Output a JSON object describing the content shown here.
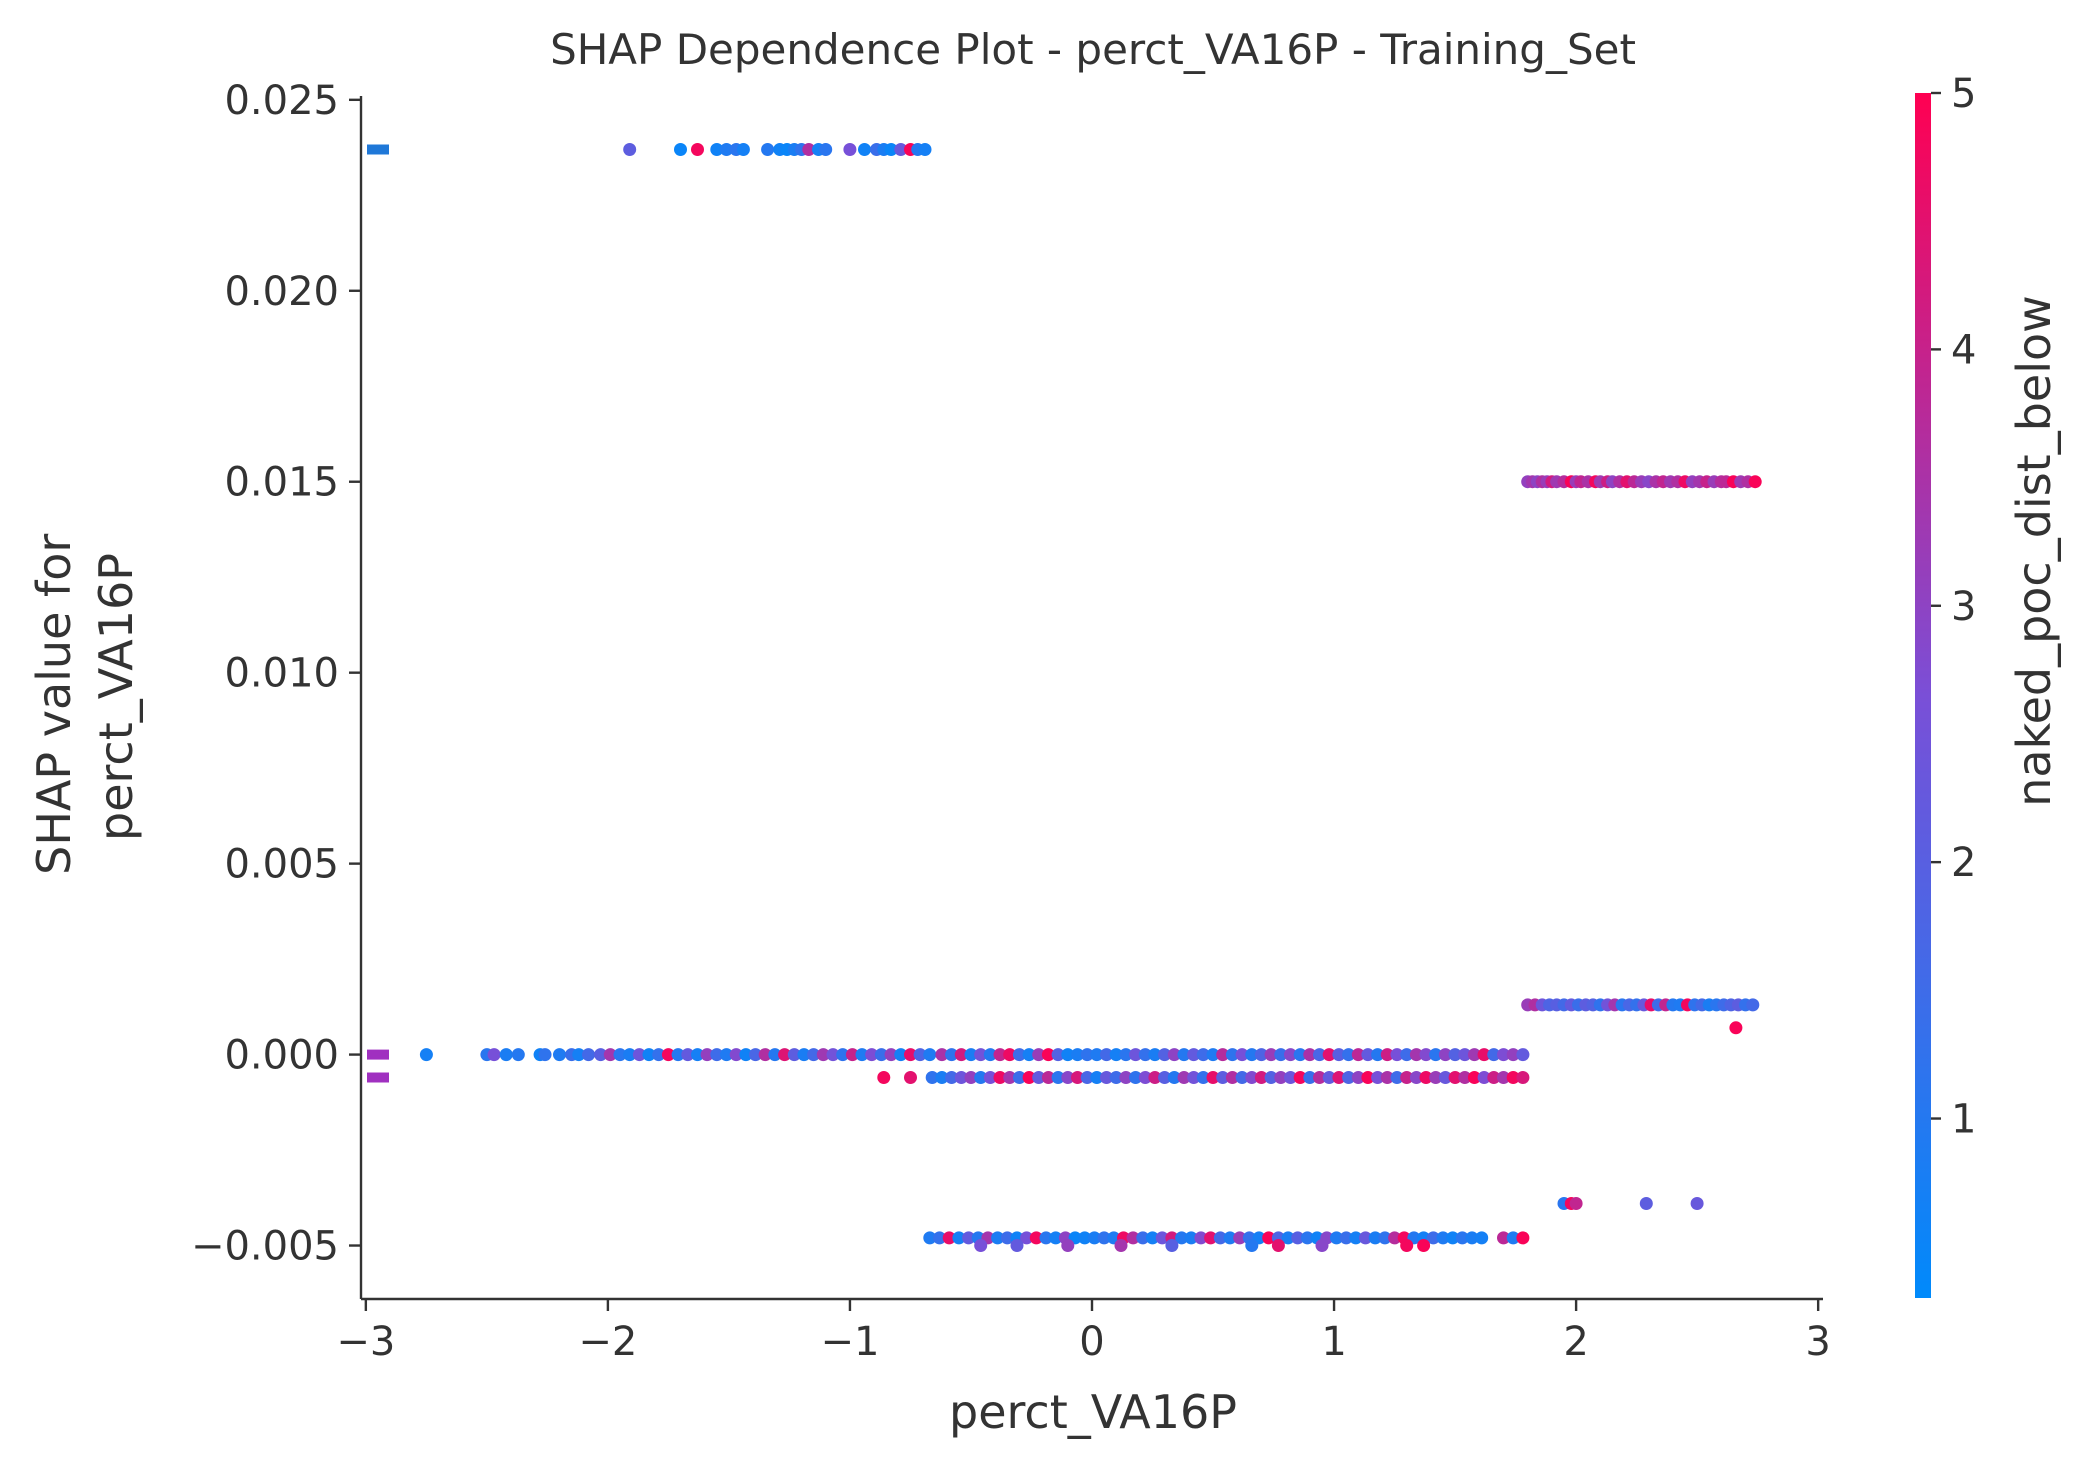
{
  "chart_data": {
    "type": "scatter",
    "title": "SHAP Dependence Plot - perct_VA16P - Training_Set",
    "xlabel": "perct_VA16P",
    "ylabel_lines": [
      "SHAP value for",
      "perct_VA16P"
    ],
    "xlim": [
      -3.02,
      3.02
    ],
    "ylim": [
      -0.0064,
      0.0251
    ],
    "xticks": [
      -3,
      -2,
      -1,
      0,
      1,
      2,
      3
    ],
    "xtick_labels": [
      "−3",
      "−2",
      "−1",
      "0",
      "1",
      "2",
      "3"
    ],
    "yticks": [
      -0.005,
      0.0,
      0.005,
      0.01,
      0.015,
      0.02,
      0.025
    ],
    "ytick_labels": [
      "−0.005",
      "0.000",
      "0.005",
      "0.010",
      "0.015",
      "0.020",
      "0.025"
    ],
    "colorbar": {
      "label": "naked_poc_dist_below",
      "range": [
        0.3,
        5.0
      ],
      "ticks": [
        1,
        2,
        3,
        4,
        5
      ],
      "tick_labels": [
        "1",
        "2",
        "3",
        "4",
        "5"
      ],
      "colors": [
        "#008afb",
        "#7a4fd7",
        "#ff0052"
      ]
    },
    "nan_markers": [
      {
        "y": 0.0237,
        "color": "#1f78d8"
      },
      {
        "y": 0.0,
        "color": "#a030c0"
      },
      {
        "y": -0.0006,
        "color": "#a030c0"
      }
    ],
    "groups": [
      {
        "y": 0.0237,
        "x": [
          -1.91,
          -1.7,
          -1.63,
          -1.55,
          -1.51,
          -1.47,
          -1.44,
          -1.34,
          -1.29,
          -1.26,
          -1.23,
          -1.2,
          -1.17,
          -1.13,
          -1.1,
          -1.0,
          -0.94,
          -0.89,
          -0.86,
          -0.83,
          -0.79,
          -0.75,
          -0.72,
          -0.69
        ],
        "c": [
          2.1,
          0.5,
          4.8,
          0.6,
          0.9,
          1.1,
          0.7,
          1.0,
          0.6,
          0.5,
          0.8,
          1.2,
          3.6,
          0.7,
          1.1,
          2.6,
          0.6,
          1.4,
          0.8,
          0.5,
          2.3,
          4.9,
          1.0,
          0.7
        ]
      },
      {
        "y": 0.015,
        "x": [
          1.8,
          1.82,
          1.84,
          1.86,
          1.88,
          1.9,
          1.92,
          1.95,
          1.98,
          2.0,
          2.02,
          2.05,
          2.08,
          2.1,
          2.13,
          2.15,
          2.18,
          2.21,
          2.24,
          2.27,
          2.3,
          2.33,
          2.36,
          2.39,
          2.42,
          2.45,
          2.48,
          2.51,
          2.54,
          2.57,
          2.6,
          2.62,
          2.65,
          2.68,
          2.71,
          2.74
        ],
        "c": [
          3.1,
          3.4,
          3.0,
          3.6,
          3.2,
          4.2,
          3.3,
          3.7,
          4.9,
          3.2,
          3.9,
          3.5,
          4.8,
          3.3,
          4.1,
          3.0,
          3.6,
          4.5,
          3.8,
          3.2,
          2.9,
          3.5,
          3.9,
          3.3,
          3.6,
          4.7,
          3.1,
          3.4,
          4.0,
          3.2,
          3.7,
          3.8,
          4.9,
          3.3,
          3.6,
          4.9
        ]
      },
      {
        "y": 0.0013,
        "x": [
          1.8,
          1.83,
          1.86,
          1.89,
          1.92,
          1.95,
          1.98,
          2.01,
          2.04,
          2.07,
          2.1,
          2.13,
          2.16,
          2.19,
          2.22,
          2.25,
          2.28,
          2.31,
          2.34,
          2.37,
          2.4,
          2.43,
          2.46,
          2.49,
          2.52,
          2.55,
          2.58,
          2.61,
          2.64,
          2.67,
          2.7,
          2.73
        ],
        "c": [
          3.2,
          3.6,
          2.4,
          1.8,
          2.0,
          1.6,
          2.2,
          1.4,
          2.1,
          1.9,
          1.2,
          2.5,
          3.4,
          1.1,
          1.7,
          1.3,
          2.3,
          4.6,
          1.5,
          3.9,
          1.0,
          0.9,
          4.8,
          1.2,
          1.6,
          0.8,
          1.1,
          1.5,
          1.8,
          2.1,
          1.3,
          1.6
        ]
      },
      {
        "y": 0.0007,
        "x": [
          2.66
        ],
        "c": [
          4.9
        ]
      },
      {
        "y": 0.0,
        "x": [
          -2.75,
          -2.5,
          -2.47,
          -2.42,
          -2.37,
          -2.28,
          -2.26,
          -2.2,
          -2.15,
          -2.12,
          -2.08,
          -2.03,
          -1.99,
          -1.95,
          -1.91,
          -1.87,
          -1.83,
          -1.79,
          -1.75,
          -1.71,
          -1.67,
          -1.63,
          -1.59,
          -1.55,
          -1.51,
          -1.47,
          -1.43,
          -1.39,
          -1.35,
          -1.31,
          -1.27,
          -1.23,
          -1.19,
          -1.15,
          -1.11,
          -1.07,
          -1.03,
          -0.99,
          -0.95,
          -0.91,
          -0.87,
          -0.83,
          -0.79,
          -0.75,
          -0.71,
          -0.67,
          -0.62,
          -0.58,
          -0.54,
          -0.5,
          -0.46,
          -0.42,
          -0.38,
          -0.34,
          -0.3,
          -0.26,
          -0.22,
          -0.18,
          -0.14,
          -0.1,
          -0.06,
          -0.02,
          0.02,
          0.06,
          0.1,
          0.14,
          0.18,
          0.22,
          0.26,
          0.3,
          0.34,
          0.38,
          0.42,
          0.46,
          0.5,
          0.54,
          0.58,
          0.62,
          0.66,
          0.7,
          0.74,
          0.78,
          0.82,
          0.86,
          0.9,
          0.94,
          0.98,
          1.02,
          1.06,
          1.1,
          1.14,
          1.18,
          1.22,
          1.26,
          1.3,
          1.34,
          1.38,
          1.42,
          1.46,
          1.5,
          1.54,
          1.58,
          1.62,
          1.66,
          1.7,
          1.74,
          1.78
        ],
        "c": [
          0.7,
          1.1,
          2.6,
          0.8,
          1.0,
          0.6,
          1.2,
          0.9,
          1.4,
          0.7,
          1.6,
          2.0,
          3.4,
          1.1,
          0.8,
          2.4,
          0.6,
          1.3,
          4.8,
          1.0,
          2.2,
          0.7,
          3.1,
          1.5,
          0.9,
          2.8,
          0.6,
          1.7,
          3.6,
          1.0,
          4.4,
          2.1,
          0.8,
          1.6,
          3.3,
          2.5,
          1.2,
          4.0,
          0.9,
          2.7,
          1.4,
          3.1,
          0.7,
          4.6,
          1.8,
          0.9,
          3.5,
          1.2,
          4.2,
          0.8,
          2.5,
          1.0,
          3.9,
          4.7,
          1.5,
          0.7,
          3.2,
          4.9,
          1.9,
          0.6,
          0.8,
          1.2,
          0.9,
          1.6,
          0.7,
          1.1,
          2.4,
          1.3,
          0.8,
          1.9,
          3.0,
          1.0,
          2.2,
          1.5,
          0.9,
          3.7,
          1.2,
          2.6,
          1.0,
          1.8,
          3.2,
          1.4,
          2.9,
          1.1,
          3.5,
          1.7,
          4.5,
          2.0,
          1.3,
          3.8,
          2.2,
          1.0,
          4.1,
          2.6,
          1.5,
          3.4,
          2.8,
          1.1,
          3.0,
          1.9,
          2.4,
          3.3,
          4.6,
          1.6,
          2.7,
          3.1,
          2.2
        ]
      },
      {
        "y": -0.0006,
        "x": [
          -0.86,
          -0.75,
          -0.66,
          -0.62,
          -0.58,
          -0.54,
          -0.5,
          -0.46,
          -0.42,
          -0.38,
          -0.34,
          -0.3,
          -0.26,
          -0.22,
          -0.18,
          -0.14,
          -0.1,
          -0.06,
          -0.02,
          0.02,
          0.06,
          0.1,
          0.14,
          0.18,
          0.22,
          0.26,
          0.3,
          0.34,
          0.38,
          0.42,
          0.46,
          0.5,
          0.54,
          0.58,
          0.62,
          0.66,
          0.7,
          0.74,
          0.78,
          0.82,
          0.86,
          0.9,
          0.94,
          0.98,
          1.02,
          1.06,
          1.1,
          1.14,
          1.18,
          1.22,
          1.26,
          1.3,
          1.34,
          1.38,
          1.42,
          1.46,
          1.5,
          1.54,
          1.58,
          1.62,
          1.66,
          1.7,
          1.74,
          1.78
        ],
        "c": [
          4.8,
          4.5,
          1.2,
          0.8,
          1.6,
          2.4,
          3.1,
          1.0,
          2.6,
          4.7,
          3.4,
          1.4,
          4.9,
          2.2,
          3.8,
          1.1,
          2.9,
          4.3,
          1.7,
          0.7,
          2.3,
          1.5,
          3.0,
          1.2,
          2.7,
          4.1,
          2.0,
          1.0,
          3.3,
          2.5,
          1.3,
          4.6,
          2.1,
          3.6,
          1.6,
          2.8,
          4.2,
          1.9,
          3.1,
          2.4,
          4.8,
          1.4,
          3.7,
          2.2,
          4.4,
          1.8,
          3.0,
          4.9,
          2.6,
          3.5,
          1.5,
          4.0,
          2.9,
          4.7,
          3.2,
          2.3,
          4.5,
          3.6,
          4.9,
          2.7,
          4.1,
          3.4,
          4.8,
          4.3
        ]
      },
      {
        "y": -0.0039,
        "x": [
          1.95,
          1.98,
          2.0,
          2.29,
          2.5
        ],
        "c": [
          1.1,
          4.8,
          3.9,
          2.1,
          2.3
        ]
      },
      {
        "y": -0.0048,
        "x": [
          -0.67,
          -0.63,
          -0.59,
          -0.55,
          -0.51,
          -0.47,
          -0.43,
          -0.39,
          -0.35,
          -0.31,
          -0.27,
          -0.23,
          -0.19,
          -0.15,
          -0.11,
          -0.07,
          -0.03,
          0.01,
          0.05,
          0.09,
          0.13,
          0.17,
          0.21,
          0.25,
          0.29,
          0.33,
          0.37,
          0.41,
          0.45,
          0.49,
          0.53,
          0.57,
          0.61,
          0.65,
          0.69,
          0.73,
          0.77,
          0.81,
          0.85,
          0.89,
          0.93,
          0.97,
          1.01,
          1.05,
          1.09,
          1.13,
          1.17,
          1.21,
          1.25,
          1.29,
          1.33,
          1.37,
          1.41,
          1.45,
          1.49,
          1.53,
          1.57,
          1.61,
          1.7,
          1.74,
          1.78
        ],
        "c": [
          0.9,
          1.3,
          4.6,
          0.7,
          2.2,
          1.0,
          3.4,
          0.8,
          1.5,
          0.6,
          2.6,
          4.8,
          1.1,
          0.7,
          3.0,
          0.5,
          0.6,
          0.8,
          1.2,
          0.9,
          4.7,
          3.6,
          1.4,
          0.7,
          2.4,
          4.2,
          1.0,
          0.8,
          2.8,
          4.5,
          1.6,
          0.9,
          3.2,
          1.3,
          0.7,
          4.9,
          1.8,
          0.8,
          2.0,
          1.1,
          0.6,
          2.9,
          0.9,
          1.4,
          0.7,
          2.3,
          0.8,
          1.2,
          3.7,
          4.8,
          1.0,
          0.7,
          1.5,
          0.9,
          0.6,
          1.1,
          0.8,
          0.7,
          3.8,
          0.9,
          4.9
        ]
      },
      {
        "y": -0.005,
        "x": [
          -0.46,
          -0.31,
          -0.1,
          0.12,
          0.33,
          0.66,
          0.77,
          0.95,
          1.3,
          1.37
        ],
        "c": [
          2.6,
          2.2,
          3.1,
          3.4,
          2.0,
          1.0,
          4.5,
          2.9,
          4.8,
          4.9
        ]
      }
    ]
  }
}
